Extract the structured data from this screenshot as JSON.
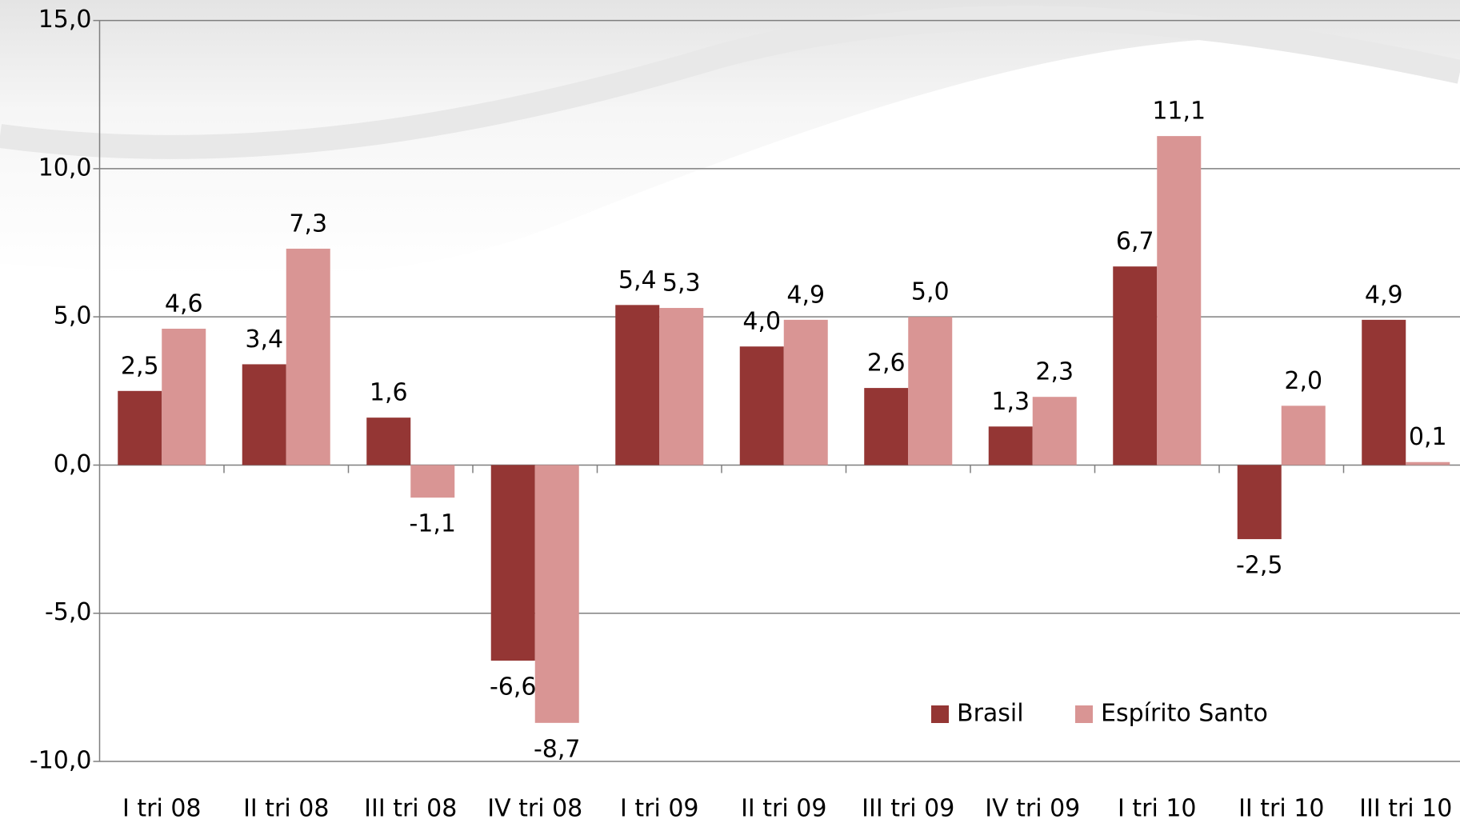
{
  "chart_data": {
    "type": "bar",
    "categories": [
      "I tri 08",
      "II tri 08",
      "III tri 08",
      "IV tri 08",
      "I tri 09",
      "II tri 09",
      "III tri 09",
      "IV tri 09",
      "I tri 10",
      "II tri 10",
      "III tri 10"
    ],
    "series": [
      {
        "name": "Brasil",
        "color": "#943634",
        "values": [
          2.5,
          3.4,
          1.6,
          -6.6,
          5.4,
          4.0,
          2.6,
          1.3,
          6.7,
          -2.5,
          4.9
        ],
        "value_labels": [
          "2,5",
          "3,4",
          "1,6",
          "-6,6",
          "5,4",
          "4,0",
          "2,6",
          "1,3",
          "6,7",
          "-2,5",
          "4,9"
        ]
      },
      {
        "name": "Espírito Santo",
        "color": "#d99594",
        "values": [
          4.6,
          7.3,
          -1.1,
          -8.7,
          5.3,
          4.9,
          5.0,
          2.3,
          11.1,
          2.0,
          0.1
        ],
        "value_labels": [
          "4,6",
          "7,3",
          "-1,1",
          "-8,7",
          "5,3",
          "4,9",
          "5,0",
          "2,3",
          "11,1",
          "2,0",
          "0,1"
        ]
      }
    ],
    "ylim": [
      -10,
      15
    ],
    "yticks": [
      {
        "value": -10,
        "label": "-10,0"
      },
      {
        "value": -5,
        "label": "-5,0"
      },
      {
        "value": 0,
        "label": "0,0"
      },
      {
        "value": 5,
        "label": "5,0"
      },
      {
        "value": 10,
        "label": "10,0"
      },
      {
        "value": 15,
        "label": "15,0"
      }
    ],
    "grid": true
  }
}
